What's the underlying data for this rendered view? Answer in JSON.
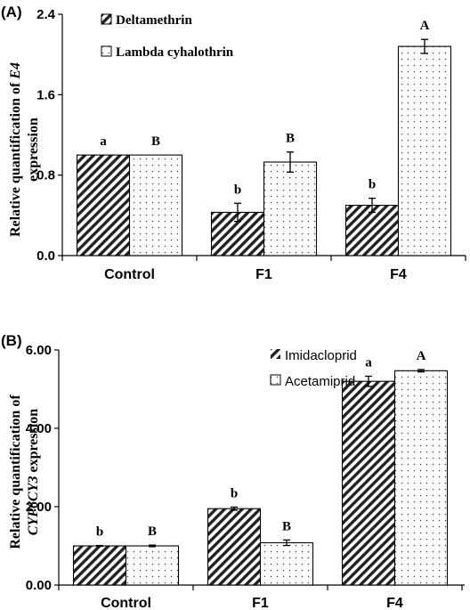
{
  "figure": {
    "panels": [
      {
        "label": "(A)",
        "ylabel_prefix": "Relative quantification of ",
        "ylabel_italic": "E4",
        "ylabel_line2": "expression",
        "legend_entries": [
          "Deltamethrin",
          "Lambda cyhalothrin"
        ],
        "tick_labels": [
          "0.0",
          "0.8",
          "1.6",
          "2.4"
        ],
        "categories": [
          "Control",
          "F1",
          "F4"
        ],
        "significance": {
          "Deltamethrin": [
            "a",
            "b",
            "b"
          ],
          "Lambda cyhalothrin": [
            "B",
            "B",
            "A"
          ]
        }
      },
      {
        "label": "(B)",
        "ylabel_prefix": "Relative quantification of",
        "ylabel_italic": "CYP6CY3",
        "ylabel_line2": " expression",
        "legend_entries": [
          "Imidacloprid",
          "Acetamiprid"
        ],
        "tick_labels": [
          "0.00",
          "2.00",
          "4.00",
          "6.00"
        ],
        "categories": [
          "Control",
          "F1",
          "F4"
        ],
        "significance": {
          "Imidacloprid": [
            "b",
            "b",
            "a"
          ],
          "Acetamiprid": [
            "B",
            "B",
            "A"
          ]
        }
      }
    ]
  },
  "chart_data": [
    {
      "type": "bar",
      "categories": [
        "Control",
        "F1",
        "F4"
      ],
      "series": [
        {
          "name": "Deltamethrin",
          "values": [
            1.0,
            0.43,
            0.5
          ],
          "errors": [
            0.0,
            0.09,
            0.07
          ],
          "pattern": "diagonal-hatch"
        },
        {
          "name": "Lambda cyhalothrin",
          "values": [
            1.0,
            0.93,
            2.08
          ],
          "errors": [
            0.0,
            0.1,
            0.07
          ],
          "pattern": "dots"
        }
      ],
      "xlabel": "",
      "ylabel": "Relative quantification of E4 expression",
      "ylim": [
        0.0,
        2.4
      ],
      "yticks": [
        0.0,
        0.8,
        1.6,
        2.4
      ],
      "grid": false,
      "legend": "top-left"
    },
    {
      "type": "bar",
      "categories": [
        "Control",
        "F1",
        "F4"
      ],
      "series": [
        {
          "name": "Imidacloprid",
          "values": [
            1.0,
            1.95,
            5.2
          ],
          "errors": [
            0.01,
            0.04,
            0.13
          ],
          "pattern": "diagonal-hatch"
        },
        {
          "name": "Acetamiprid",
          "values": [
            1.0,
            1.08,
            5.47
          ],
          "errors": [
            0.02,
            0.07,
            0.03
          ],
          "pattern": "dots"
        }
      ],
      "xlabel": "",
      "ylabel": "Relative quantification of CYP6CY3 expression",
      "ylim": [
        0.0,
        6.0
      ],
      "yticks": [
        0.0,
        2.0,
        4.0,
        6.0
      ],
      "grid": false,
      "legend": "top-left"
    }
  ]
}
